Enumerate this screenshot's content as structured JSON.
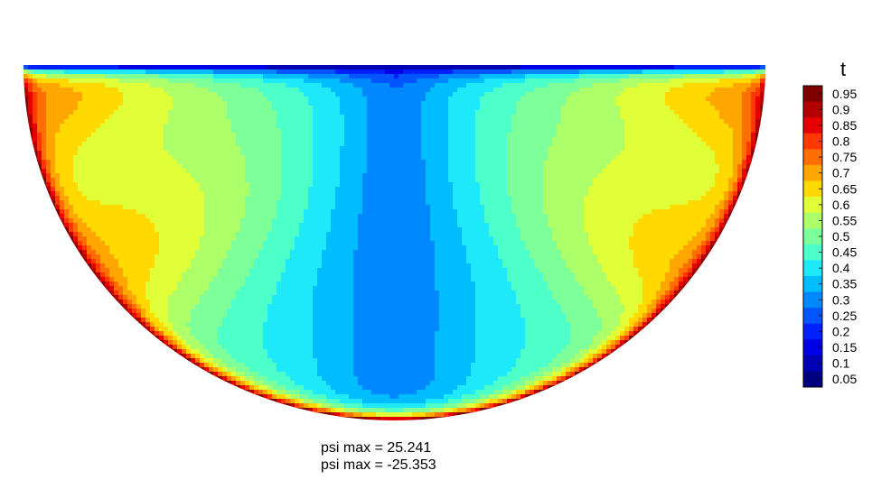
{
  "chart_data": {
    "type": "heatmap",
    "title": "",
    "domain_shape": "half-disk (flat top, rounded bottom)",
    "color_variable": "t",
    "colormap": "jet",
    "levels": [
      0.05,
      0.1,
      0.15,
      0.2,
      0.25,
      0.3,
      0.35,
      0.4,
      0.45,
      0.5,
      0.55,
      0.6,
      0.65,
      0.7,
      0.75,
      0.8,
      0.85,
      0.9,
      0.95
    ],
    "level_labels": [
      "0.95",
      "0.9",
      "0.85",
      "0.8",
      "0.75",
      "0.7",
      "0.65",
      "0.6",
      "0.55",
      "0.5",
      "0.45",
      "0.4",
      "0.35",
      "0.3",
      "0.25",
      "0.2",
      "0.15",
      "0.1",
      "0.05"
    ],
    "colors": [
      "#000080",
      "#0000b4",
      "#0000e6",
      "#0021ff",
      "#0055ff",
      "#0089ff",
      "#00bdff",
      "#1ee9fa",
      "#4dffc9",
      "#7dff99",
      "#adff69",
      "#e0ff36",
      "#ffd900",
      "#ffa600",
      "#ff6e00",
      "#ff3700",
      "#e60000",
      "#b40000",
      "#800000"
    ],
    "legend_position": "right",
    "annotations": [
      "psi max = 25.241",
      "psi max = -25.353"
    ]
  },
  "legend": {
    "title": "t"
  },
  "annotations": {
    "psi_max": "psi max = 25.241",
    "psi_min": "psi max = -25.353"
  }
}
